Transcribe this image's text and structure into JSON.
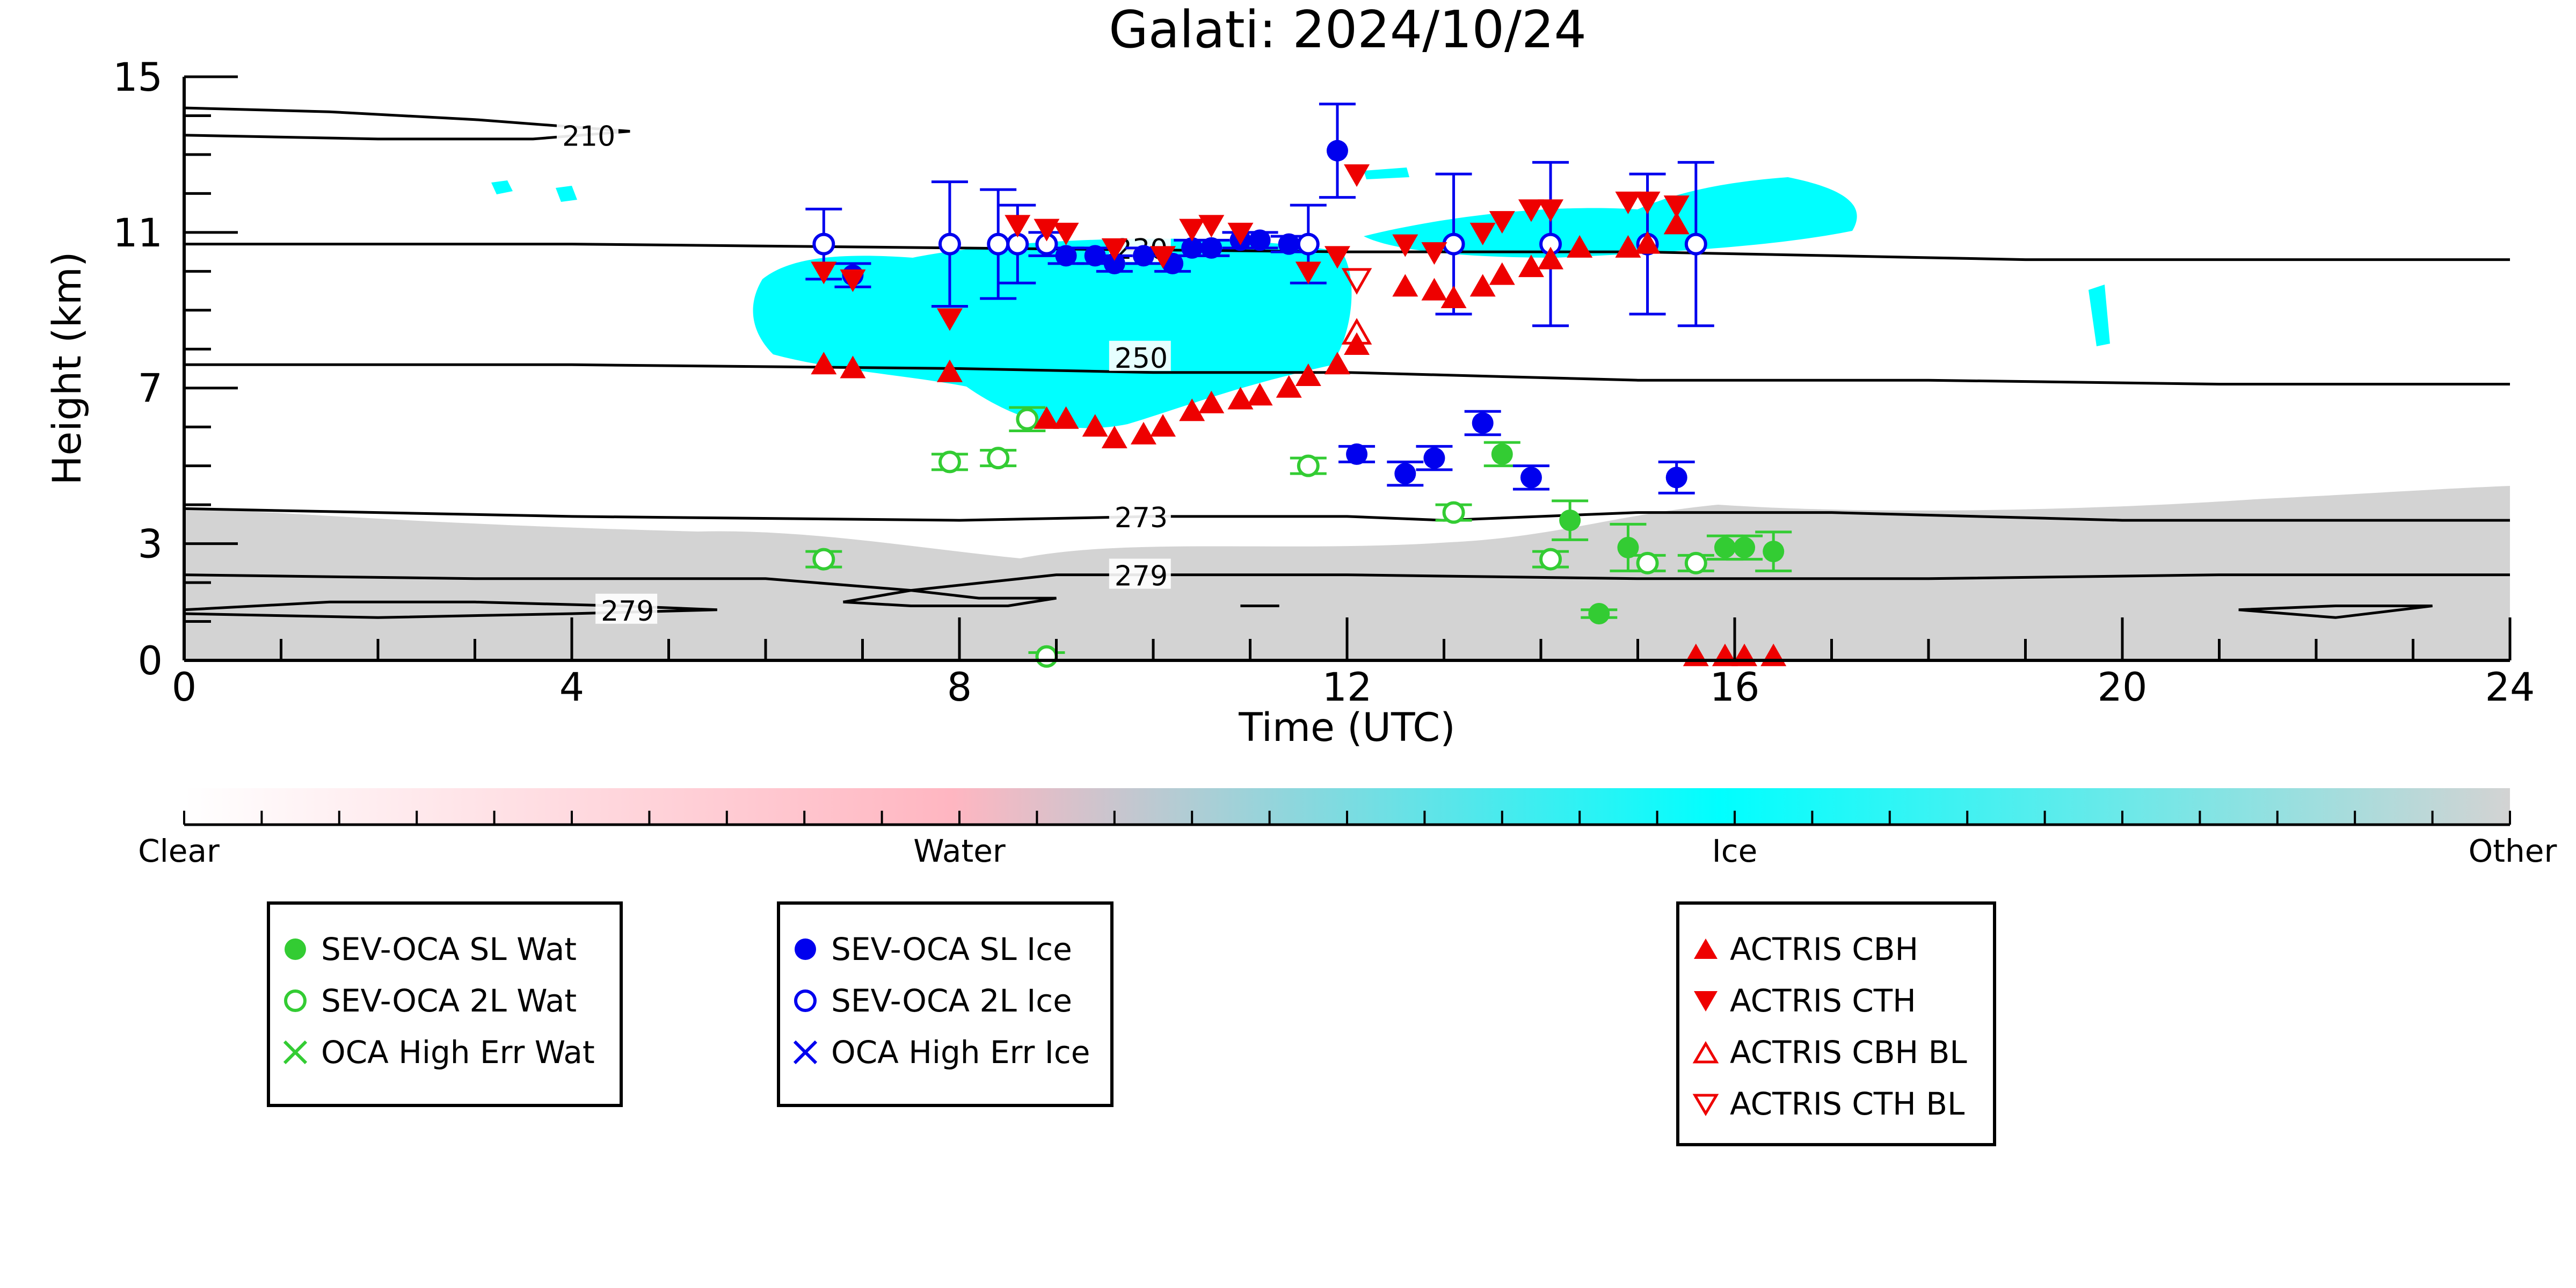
{
  "chart_data": {
    "type": "scatter",
    "title": "Galati: 2024/10/24",
    "xlabel": "Time (UTC)",
    "ylabel": "Height (km)",
    "xlim": [
      0,
      24
    ],
    "ylim": [
      0,
      15
    ],
    "x_ticks": [
      "0",
      "4",
      "8",
      "12",
      "16",
      "20",
      "24"
    ],
    "y_ticks": [
      "0",
      "3",
      "7",
      "11",
      "15"
    ],
    "y_tick_values": [
      0,
      3,
      7,
      11,
      15
    ],
    "colorbar": {
      "labels": [
        "Clear",
        "Water",
        "Ice",
        "Other"
      ],
      "colors": [
        "#ffffff",
        "#ffb6c1",
        "#00ffff",
        "#d3d3d3"
      ]
    },
    "contours": [
      {
        "label": "210",
        "label_x": 3.9,
        "label_y": 13.5,
        "points": [
          [
            0,
            14.2
          ],
          [
            1.5,
            14.1
          ],
          [
            3,
            13.9
          ],
          [
            4.6,
            13.6
          ],
          [
            3.6,
            13.4
          ],
          [
            2,
            13.4
          ],
          [
            0,
            13.5
          ]
        ]
      },
      {
        "label": "230",
        "label_x": 9.6,
        "label_y": 10.6,
        "points": [
          [
            0,
            10.7
          ],
          [
            4,
            10.7
          ],
          [
            8,
            10.6
          ],
          [
            12,
            10.5
          ],
          [
            15,
            10.5
          ],
          [
            17,
            10.4
          ],
          [
            19,
            10.3
          ],
          [
            21,
            10.3
          ],
          [
            24,
            10.3
          ]
        ]
      },
      {
        "label": "250",
        "label_x": 9.6,
        "label_y": 7.8,
        "points": [
          [
            0,
            7.6
          ],
          [
            4,
            7.6
          ],
          [
            8,
            7.5
          ],
          [
            10,
            7.4
          ],
          [
            12,
            7.4
          ],
          [
            15,
            7.2
          ],
          [
            18,
            7.2
          ],
          [
            21,
            7.1
          ],
          [
            24,
            7.1
          ]
        ]
      },
      {
        "label": "273",
        "label_x": 9.6,
        "label_y": 3.7,
        "points": [
          [
            0,
            3.9
          ],
          [
            4,
            3.7
          ],
          [
            8,
            3.6
          ],
          [
            10,
            3.7
          ],
          [
            12,
            3.7
          ],
          [
            13,
            3.6
          ],
          [
            15,
            3.8
          ],
          [
            17,
            3.8
          ],
          [
            20,
            3.6
          ],
          [
            24,
            3.6
          ]
        ]
      },
      {
        "label": "279",
        "label_x": 9.6,
        "label_y": 2.2,
        "points": [
          [
            0,
            2.2
          ],
          [
            3,
            2.1
          ],
          [
            6,
            2.1
          ],
          [
            7.5,
            1.8
          ],
          [
            9,
            2.2
          ],
          [
            12,
            2.2
          ],
          [
            15,
            2.1
          ],
          [
            18,
            2.1
          ],
          [
            21,
            2.2
          ],
          [
            24,
            2.2
          ]
        ]
      },
      {
        "label": "279",
        "label_x": 4.3,
        "label_y": 1.3,
        "points": [
          [
            0,
            1.3
          ],
          [
            1.5,
            1.5
          ],
          [
            3,
            1.5
          ],
          [
            4.5,
            1.4
          ],
          [
            5.5,
            1.3
          ],
          [
            4,
            1.2
          ],
          [
            2,
            1.1
          ],
          [
            0,
            1.2
          ]
        ]
      },
      {
        "label": "",
        "label_x": 0,
        "label_y": 0,
        "points": [
          [
            6.8,
            1.5
          ],
          [
            7.5,
            1.8
          ],
          [
            8.2,
            1.6
          ],
          [
            9,
            1.6
          ],
          [
            8.5,
            1.4
          ],
          [
            7.5,
            1.4
          ],
          [
            6.8,
            1.5
          ]
        ]
      },
      {
        "label": "",
        "label_x": 0,
        "label_y": 0,
        "points": [
          [
            10.9,
            1.4
          ],
          [
            11.3,
            1.4
          ],
          [
            10.9,
            1.4
          ]
        ]
      },
      {
        "label": "",
        "label_x": 0,
        "label_y": 0,
        "points": [
          [
            21.2,
            1.3
          ],
          [
            22.2,
            1.4
          ],
          [
            23.2,
            1.4
          ],
          [
            22.2,
            1.1
          ],
          [
            21.2,
            1.3
          ]
        ]
      }
    ],
    "series": [
      {
        "name": "SEV-OCA SL Wat",
        "color": "#33cc33",
        "marker": "filled-circle",
        "points": [
          [
            13.6,
            5.3,
            0.3
          ],
          [
            14.3,
            3.6,
            0.5
          ],
          [
            14.6,
            1.2,
            0.1
          ],
          [
            14.9,
            2.9,
            0.6
          ],
          [
            15.9,
            2.9,
            0.3
          ],
          [
            16.1,
            2.9,
            0.3
          ],
          [
            16.4,
            2.8,
            0.5
          ]
        ]
      },
      {
        "name": "SEV-OCA 2L Wat",
        "color": "#33cc33",
        "marker": "hollow-circle",
        "points": [
          [
            6.6,
            2.6,
            0.2
          ],
          [
            7.9,
            5.1,
            0.2
          ],
          [
            8.4,
            5.2,
            0.2
          ],
          [
            8.7,
            6.2,
            0.3
          ],
          [
            8.9,
            0.1,
            0.1
          ],
          [
            11.6,
            5.0,
            0.2
          ],
          [
            13.1,
            3.8,
            0.2
          ],
          [
            14.1,
            2.6,
            0.2
          ],
          [
            15.1,
            2.5,
            0.2
          ],
          [
            15.6,
            2.5,
            0.2
          ]
        ]
      },
      {
        "name": "OCA High Err Wat",
        "color": "#33cc33",
        "marker": "x",
        "points": []
      },
      {
        "name": "SEV-OCA SL Ice",
        "color": "#0000ee",
        "marker": "filled-circle",
        "points": [
          [
            6.9,
            9.9,
            0.3
          ],
          [
            9.1,
            10.4,
            0.2
          ],
          [
            9.4,
            10.4,
            0.2
          ],
          [
            9.6,
            10.2,
            0.2
          ],
          [
            9.9,
            10.4,
            0.2
          ],
          [
            10.2,
            10.2,
            0.2
          ],
          [
            10.4,
            10.6,
            0.2
          ],
          [
            10.6,
            10.6,
            0.2
          ],
          [
            10.9,
            10.8,
            0.2
          ],
          [
            11.1,
            10.8,
            0.2
          ],
          [
            11.4,
            10.7,
            0.2
          ],
          [
            11.9,
            13.1,
            1.2
          ],
          [
            12.1,
            5.3,
            0.2
          ],
          [
            12.6,
            4.8,
            0.3
          ],
          [
            12.9,
            5.2,
            0.3
          ],
          [
            13.4,
            6.1,
            0.3
          ],
          [
            13.9,
            4.7,
            0.3
          ],
          [
            15.4,
            4.7,
            0.4
          ]
        ]
      },
      {
        "name": "SEV-OCA 2L Ice",
        "color": "#0000ee",
        "marker": "hollow-circle",
        "points": [
          [
            6.6,
            10.7,
            0.9
          ],
          [
            7.9,
            10.7,
            1.6
          ],
          [
            8.4,
            10.7,
            1.4
          ],
          [
            8.6,
            10.7,
            1.0
          ],
          [
            8.9,
            10.7,
            0.3
          ],
          [
            11.6,
            10.7,
            1.0
          ],
          [
            13.1,
            10.7,
            1.8
          ],
          [
            14.1,
            10.7,
            2.1
          ],
          [
            15.1,
            10.7,
            1.8
          ],
          [
            15.6,
            10.7,
            2.1
          ]
        ]
      },
      {
        "name": "OCA High Err Ice",
        "color": "#0000ee",
        "marker": "x",
        "points": []
      },
      {
        "name": "ACTRIS CBH",
        "color": "#ee0000",
        "marker": "triangle-up",
        "points": [
          [
            6.6,
            7.6
          ],
          [
            6.9,
            7.5
          ],
          [
            7.9,
            7.4
          ],
          [
            8.9,
            6.2
          ],
          [
            9.1,
            6.2
          ],
          [
            9.4,
            6.0
          ],
          [
            9.6,
            5.7
          ],
          [
            9.9,
            5.8
          ],
          [
            10.1,
            6.0
          ],
          [
            10.4,
            6.4
          ],
          [
            10.6,
            6.6
          ],
          [
            10.9,
            6.7
          ],
          [
            11.1,
            6.8
          ],
          [
            11.4,
            7.0
          ],
          [
            11.6,
            7.3
          ],
          [
            11.9,
            7.6
          ],
          [
            12.1,
            8.1
          ],
          [
            12.6,
            9.6
          ],
          [
            12.9,
            9.5
          ],
          [
            13.1,
            9.3
          ],
          [
            13.4,
            9.6
          ],
          [
            13.6,
            9.9
          ],
          [
            13.9,
            10.1
          ],
          [
            14.1,
            10.3
          ],
          [
            14.4,
            10.6
          ],
          [
            14.9,
            10.6
          ],
          [
            15.1,
            10.7
          ],
          [
            15.4,
            11.2
          ],
          [
            15.6,
            0.1
          ],
          [
            15.9,
            0.1
          ],
          [
            16.1,
            0.1
          ],
          [
            16.4,
            0.1
          ]
        ]
      },
      {
        "name": "ACTRIS CTH",
        "color": "#ee0000",
        "marker": "triangle-down",
        "points": [
          [
            6.6,
            10.0
          ],
          [
            6.9,
            9.8
          ],
          [
            7.9,
            8.8
          ],
          [
            8.6,
            11.2
          ],
          [
            8.9,
            11.1
          ],
          [
            9.1,
            11.0
          ],
          [
            9.6,
            10.6
          ],
          [
            10.1,
            10.4
          ],
          [
            10.4,
            11.1
          ],
          [
            10.6,
            11.2
          ],
          [
            10.9,
            11.0
          ],
          [
            11.6,
            10.0
          ],
          [
            11.9,
            10.4
          ],
          [
            12.1,
            12.5
          ],
          [
            12.6,
            10.7
          ],
          [
            12.9,
            10.5
          ],
          [
            13.4,
            11.0
          ],
          [
            13.6,
            11.3
          ],
          [
            13.9,
            11.6
          ],
          [
            14.1,
            11.6
          ],
          [
            14.9,
            11.8
          ],
          [
            15.1,
            11.8
          ],
          [
            15.4,
            11.7
          ]
        ]
      },
      {
        "name": "ACTRIS CBH BL",
        "color": "#ee0000",
        "marker": "hollow-triangle-up",
        "points": [
          [
            12.1,
            8.4
          ]
        ]
      },
      {
        "name": "ACTRIS CTH BL",
        "color": "#ee0000",
        "marker": "hollow-triangle-down",
        "points": [
          [
            12.1,
            9.8
          ]
        ]
      }
    ],
    "grid": false,
    "legend": "below"
  }
}
